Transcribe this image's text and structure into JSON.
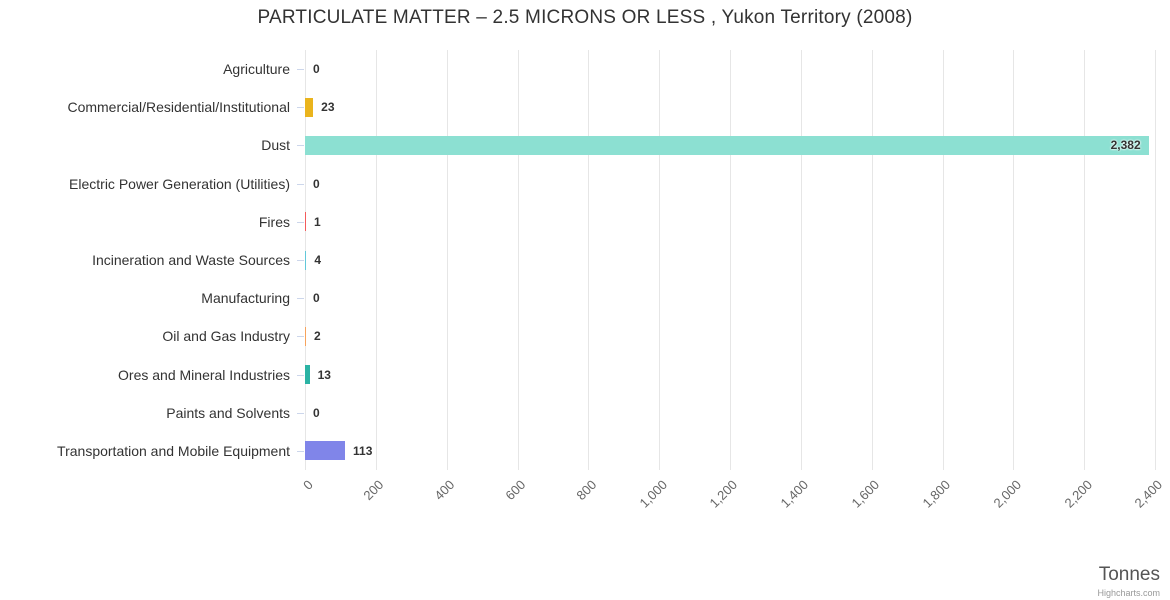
{
  "chart": {
    "title": "PARTICULATE MATTER – 2.5 MICRONS OR LESS , Yukon Territory (2008)",
    "xaxis_title": "Tonnes",
    "credit": "Highcharts.com"
  },
  "chart_data": {
    "type": "bar",
    "orientation": "horizontal",
    "title": "PARTICULATE MATTER – 2.5 MICRONS OR LESS , Yukon Territory (2008)",
    "categories": [
      "Agriculture",
      "Commercial/Residential/Institutional",
      "Dust",
      "Electric Power Generation (Utilities)",
      "Fires",
      "Incineration and Waste Sources",
      "Manufacturing",
      "Oil and Gas Industry",
      "Ores and Mineral Industries",
      "Paints and Solvents",
      "Transportation and Mobile Equipment"
    ],
    "values": [
      0,
      23,
      2382,
      0,
      1,
      4,
      0,
      2,
      13,
      0,
      113
    ],
    "value_labels": [
      "0",
      "23",
      "2,382",
      "0",
      "1",
      "4",
      "0",
      "2",
      "13",
      "0",
      "113"
    ],
    "colors": [
      "#7cb5ec",
      "#eab41d",
      "#8ce0d2",
      "#90ed7d",
      "#f45b5b",
      "#62c8d9",
      "#f15c80",
      "#f7a35c",
      "#2bb3a4",
      "#434348",
      "#8085e9"
    ],
    "xlabel": "Tonnes",
    "ylabel": "",
    "xlim": [
      0,
      2400
    ],
    "xticks": [
      0,
      200,
      400,
      600,
      800,
      1000,
      1200,
      1400,
      1600,
      1800,
      2000,
      2200,
      2400
    ],
    "xtick_labels": [
      "0",
      "200",
      "400",
      "600",
      "800",
      "1,000",
      "1,200",
      "1,400",
      "1,600",
      "1,800",
      "2,000",
      "2,200",
      "2,400"
    ],
    "grid": true,
    "legend": false
  }
}
